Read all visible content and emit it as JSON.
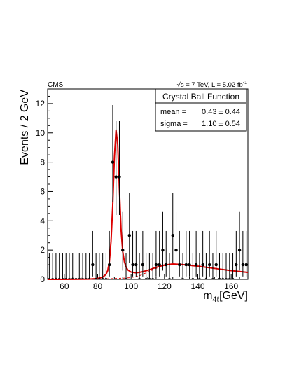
{
  "header": {
    "experiment": "CMS",
    "energy_prefix": "√s = 7 TeV, L = 5.02 fb",
    "energy_sup": "-1"
  },
  "legend": {
    "title": "Crystal Ball Function",
    "rows": [
      {
        "name": "mean =",
        "value": "0.43 ± 0.44"
      },
      {
        "name": "sigma =",
        "value": "1.10 ± 0.54"
      }
    ]
  },
  "axes": {
    "ylabel": "Events / 2 GeV",
    "xlabel_main": "m",
    "xlabel_sub": "4ℓ",
    "xlabel_unit": "[GeV]"
  },
  "colors": {
    "fit_curve": "#dd0000",
    "data_points": "#000000",
    "background_dashed": "#dd0000"
  },
  "chart_data": {
    "type": "scatter",
    "xlim": [
      50,
      170
    ],
    "ylim": [
      0,
      13
    ],
    "xticks": [
      60,
      80,
      100,
      120,
      140,
      160
    ],
    "yticks": [
      0,
      2,
      4,
      6,
      8,
      10,
      12
    ],
    "grid": false,
    "legend_position": "top-right",
    "series": [
      {
        "type": "points_with_errors",
        "points": [
          {
            "x": 51,
            "y": 0,
            "up": 1.8
          },
          {
            "x": 53,
            "y": 0,
            "up": 1.8
          },
          {
            "x": 55,
            "y": 0,
            "up": 1.8
          },
          {
            "x": 57,
            "y": 0,
            "up": 1.8
          },
          {
            "x": 59,
            "y": 0,
            "up": 1.8
          },
          {
            "x": 61,
            "y": 0,
            "up": 1.8
          },
          {
            "x": 63,
            "y": 0,
            "up": 1.8
          },
          {
            "x": 65,
            "y": 0,
            "up": 1.8
          },
          {
            "x": 67,
            "y": 0,
            "up": 1.8
          },
          {
            "x": 69,
            "y": 0,
            "up": 1.8
          },
          {
            "x": 71,
            "y": 0,
            "up": 1.8
          },
          {
            "x": 73,
            "y": 0,
            "up": 1.8
          },
          {
            "x": 75,
            "y": 0,
            "up": 1.8
          },
          {
            "x": 77,
            "y": 1,
            "up": 3.3,
            "down": 0.2
          },
          {
            "x": 79,
            "y": 0,
            "up": 1.8
          },
          {
            "x": 81,
            "y": 0,
            "up": 1.8
          },
          {
            "x": 83,
            "y": 0,
            "up": 1.8
          },
          {
            "x": 85,
            "y": 0,
            "up": 1.8
          },
          {
            "x": 87,
            "y": 1,
            "up": 3.3,
            "down": 0.2
          },
          {
            "x": 89,
            "y": 8,
            "up": 11.9,
            "down": 5.3
          },
          {
            "x": 91,
            "y": 7,
            "up": 10.8,
            "down": 4.4
          },
          {
            "x": 93,
            "y": 7,
            "up": 10.8,
            "down": 4.4
          },
          {
            "x": 95,
            "y": 2,
            "up": 4.6,
            "down": 0.6
          },
          {
            "x": 97,
            "y": 0,
            "up": 1.8
          },
          {
            "x": 99,
            "y": 3,
            "up": 5.9,
            "down": 1.1
          },
          {
            "x": 101,
            "y": 1,
            "up": 3.3,
            "down": 0.2
          },
          {
            "x": 103,
            "y": 1,
            "up": 3.3,
            "down": 0.2
          },
          {
            "x": 105,
            "y": 0,
            "up": 1.8
          },
          {
            "x": 107,
            "y": 1,
            "up": 3.3,
            "down": 0.2
          },
          {
            "x": 109,
            "y": 0,
            "up": 1.8
          },
          {
            "x": 111,
            "y": 0,
            "up": 1.8
          },
          {
            "x": 113,
            "y": 0,
            "up": 1.8
          },
          {
            "x": 115,
            "y": 1,
            "up": 3.3,
            "down": 0.2
          },
          {
            "x": 117,
            "y": 1,
            "up": 3.3,
            "down": 0.2
          },
          {
            "x": 119,
            "y": 2,
            "up": 4.6,
            "down": 0.6
          },
          {
            "x": 121,
            "y": 1,
            "up": 3.3,
            "down": 0.2
          },
          {
            "x": 123,
            "y": 0,
            "up": 1.8
          },
          {
            "x": 125,
            "y": 3,
            "up": 5.9,
            "down": 1.1
          },
          {
            "x": 127,
            "y": 2,
            "up": 4.6,
            "down": 0.6
          },
          {
            "x": 129,
            "y": 1,
            "up": 3.3,
            "down": 0.2
          },
          {
            "x": 131,
            "y": 0,
            "up": 1.8
          },
          {
            "x": 133,
            "y": 1,
            "up": 3.3,
            "down": 0.2
          },
          {
            "x": 135,
            "y": 1,
            "up": 3.3,
            "down": 0.2
          },
          {
            "x": 137,
            "y": 0,
            "up": 1.8
          },
          {
            "x": 139,
            "y": 1,
            "up": 3.3,
            "down": 0.2
          },
          {
            "x": 141,
            "y": 0,
            "up": 1.8
          },
          {
            "x": 143,
            "y": 1,
            "up": 3.3,
            "down": 0.2
          },
          {
            "x": 145,
            "y": 0,
            "up": 1.8
          },
          {
            "x": 147,
            "y": 1,
            "up": 3.3,
            "down": 0.2
          },
          {
            "x": 149,
            "y": 0,
            "up": 1.8
          },
          {
            "x": 151,
            "y": 1,
            "up": 3.3,
            "down": 0.2
          },
          {
            "x": 153,
            "y": 0,
            "up": 1.8
          },
          {
            "x": 155,
            "y": 0,
            "up": 1.8
          },
          {
            "x": 157,
            "y": 0,
            "up": 1.8
          },
          {
            "x": 159,
            "y": 0,
            "up": 1.8
          },
          {
            "x": 161,
            "y": 0,
            "up": 1.8
          },
          {
            "x": 163,
            "y": 1,
            "up": 3.3,
            "down": 0.2
          },
          {
            "x": 165,
            "y": 2,
            "up": 4.6,
            "down": 0.6
          },
          {
            "x": 167,
            "y": 1,
            "up": 3.3,
            "down": 0.2
          },
          {
            "x": 169,
            "y": 1,
            "up": 3.3,
            "down": 0.2
          }
        ]
      },
      {
        "type": "line",
        "points": [
          [
            50,
            0.0
          ],
          [
            60,
            0.0
          ],
          [
            70,
            0.01
          ],
          [
            75,
            0.02
          ],
          [
            80,
            0.06
          ],
          [
            83,
            0.15
          ],
          [
            85,
            0.35
          ],
          [
            86,
            0.6
          ],
          [
            87,
            1.2
          ],
          [
            88,
            2.6
          ],
          [
            89,
            5.0
          ],
          [
            90,
            8.3
          ],
          [
            91,
            10.2
          ],
          [
            92,
            9.2
          ],
          [
            93,
            6.2
          ],
          [
            94,
            3.4
          ],
          [
            95,
            1.9
          ],
          [
            96,
            1.2
          ],
          [
            97,
            0.85
          ],
          [
            98,
            0.65
          ],
          [
            100,
            0.5
          ],
          [
            103,
            0.45
          ],
          [
            106,
            0.5
          ],
          [
            110,
            0.62
          ],
          [
            115,
            0.82
          ],
          [
            120,
            0.98
          ],
          [
            125,
            1.05
          ],
          [
            130,
            1.02
          ],
          [
            140,
            0.9
          ],
          [
            150,
            0.75
          ],
          [
            160,
            0.6
          ],
          [
            170,
            0.48
          ]
        ]
      },
      {
        "type": "line_dashed",
        "points": [
          [
            50,
            0.0
          ],
          [
            80,
            0.02
          ],
          [
            88,
            0.05
          ],
          [
            95,
            0.08
          ],
          [
            100,
            0.12
          ],
          [
            105,
            0.25
          ],
          [
            110,
            0.5
          ],
          [
            115,
            0.75
          ],
          [
            120,
            0.95
          ],
          [
            125,
            1.02
          ],
          [
            130,
            1.0
          ],
          [
            140,
            0.88
          ],
          [
            150,
            0.74
          ],
          [
            160,
            0.6
          ],
          [
            170,
            0.48
          ]
        ]
      }
    ]
  }
}
